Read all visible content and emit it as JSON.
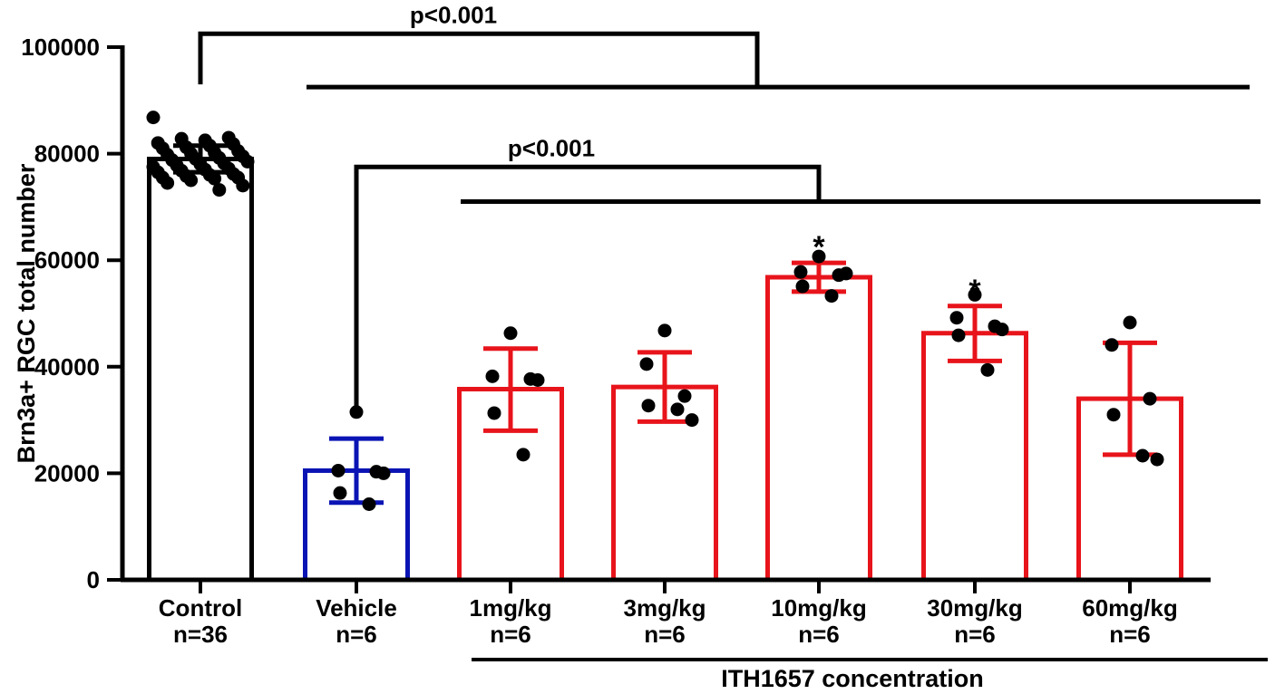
{
  "chart_data": {
    "type": "bar",
    "ylabel": "Brn3a+   RGC total number",
    "ylim": [
      0,
      100000
    ],
    "yticks": [
      0,
      20000,
      40000,
      60000,
      80000,
      100000
    ],
    "group_label": "ITH1657 concentration",
    "categories": [
      {
        "label": "Control",
        "n": "n=36",
        "mean": 79000,
        "sd_low": 76500,
        "sd_high": 81500,
        "color": "#000000"
      },
      {
        "label": "Vehicle",
        "n": "n=6",
        "mean": 20500,
        "sd_low": 14500,
        "sd_high": 26500,
        "color": "#0a14b4"
      },
      {
        "label": "1mg/kg",
        "n": "n=6",
        "mean": 35800,
        "sd_low": 28000,
        "sd_high": 43400,
        "color": "#e8141b"
      },
      {
        "label": "3mg/kg",
        "n": "n=6",
        "mean": 36200,
        "sd_low": 29700,
        "sd_high": 42700,
        "color": "#e8141b"
      },
      {
        "label": "10mg/kg",
        "n": "n=6",
        "mean": 56800,
        "sd_low": 54100,
        "sd_high": 59500,
        "color": "#e8141b",
        "annotation": "*"
      },
      {
        "label": "30mg/kg",
        "n": "n=6",
        "mean": 46300,
        "sd_low": 41100,
        "sd_high": 51400,
        "color": "#e8141b",
        "annotation": "*"
      },
      {
        "label": "60mg/kg",
        "n": "n=6",
        "mean": 34000,
        "sd_low": 23500,
        "sd_high": 44500,
        "color": "#e8141b"
      }
    ],
    "points": [
      [
        86800,
        83000,
        82500,
        82800,
        82000,
        81800,
        81500,
        81200,
        81000,
        80500,
        80200,
        80000,
        79800,
        79500,
        79200,
        79000,
        78800,
        78500,
        78200,
        78000,
        77800,
        77500,
        77200,
        77000,
        76800,
        76500,
        76200,
        76000,
        75800,
        75500,
        75500,
        75300,
        75000,
        74500,
        74000,
        73200
      ],
      [
        31500,
        20500,
        20300,
        16300,
        14200,
        20000
      ],
      [
        46300,
        38200,
        37700,
        31300,
        23500,
        37500
      ],
      [
        46800,
        40500,
        34500,
        32700,
        32000,
        30000
      ],
      [
        60700,
        57800,
        57200,
        55100,
        53300,
        57500
      ],
      [
        53500,
        49200,
        47600,
        45900,
        39400,
        47000
      ],
      [
        48300,
        44100,
        34000,
        31000,
        23300,
        22600
      ]
    ],
    "significance": [
      {
        "label": "p<0.001",
        "from": "Control",
        "to_range": [
          "Vehicle",
          "60mg/kg"
        ],
        "level": 102500,
        "stem_bottom": 93000,
        "range_level": 92500
      },
      {
        "label": "p<0.001",
        "from": "Vehicle",
        "to_range": [
          "1mg/kg",
          "60mg/kg"
        ],
        "level": 77500,
        "stem_bottom": 31500,
        "range_level": 71000
      }
    ]
  }
}
